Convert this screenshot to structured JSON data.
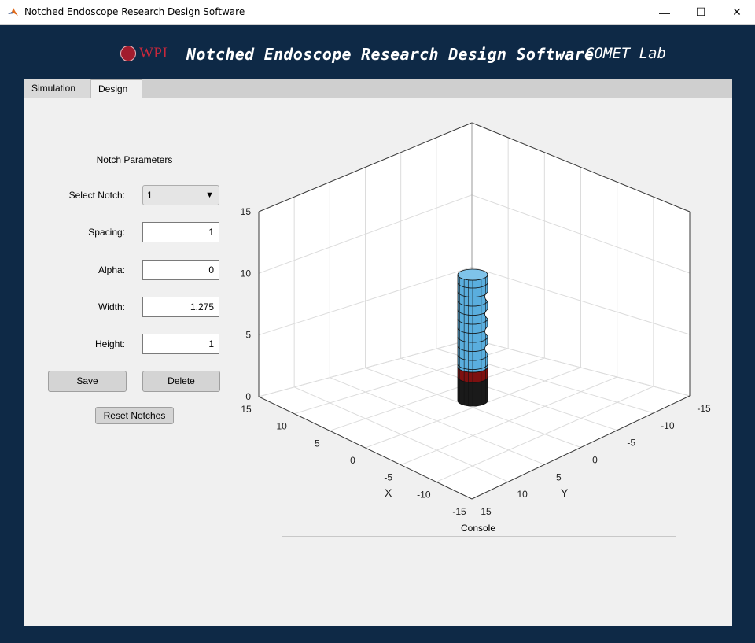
{
  "window": {
    "title": "Notched Endoscope Research Design Software",
    "minimize_glyph": "—",
    "maximize_glyph": "☐",
    "close_glyph": "✕"
  },
  "banner": {
    "logo_text": "WPI",
    "title": "Notched Endoscope Research Design Software",
    "lab": "COMET Lab"
  },
  "tabs": [
    {
      "label": "Simulation",
      "selected": false
    },
    {
      "label": "Design",
      "selected": true
    }
  ],
  "notch_panel": {
    "title": "Notch Parameters",
    "select_notch": {
      "label": "Select Notch:",
      "value": "1"
    },
    "spacing": {
      "label": "Spacing:",
      "value": "1"
    },
    "alpha": {
      "label": "Alpha:",
      "value": "0"
    },
    "width": {
      "label": "Width:",
      "value": "1.275"
    },
    "height": {
      "label": "Height:",
      "value": "1"
    },
    "save_label": "Save",
    "delete_label": "Delete",
    "reset_label": "Reset Notches"
  },
  "console": {
    "title": "Console"
  },
  "plot": {
    "x_label": "X",
    "y_label": "Y",
    "z_ticks": [
      "15",
      "10",
      "5",
      "0"
    ],
    "x_ticks": [
      "15",
      "10",
      "5",
      "0",
      "-5",
      "-10",
      "-15"
    ],
    "y_ticks": [
      "15",
      "10",
      "5",
      "0",
      "-5",
      "-10",
      "-15"
    ],
    "z_range": [
      0,
      15
    ],
    "x_range": [
      -15,
      15
    ],
    "y_range": [
      -15,
      15
    ],
    "grid": true,
    "colors": {
      "tube_body": "#5aaede",
      "tube_base_red": "#7e1010",
      "tube_base_black": "#1a1a1a",
      "grid": "#dcdcdc",
      "axis": "#3a3a3a"
    }
  }
}
